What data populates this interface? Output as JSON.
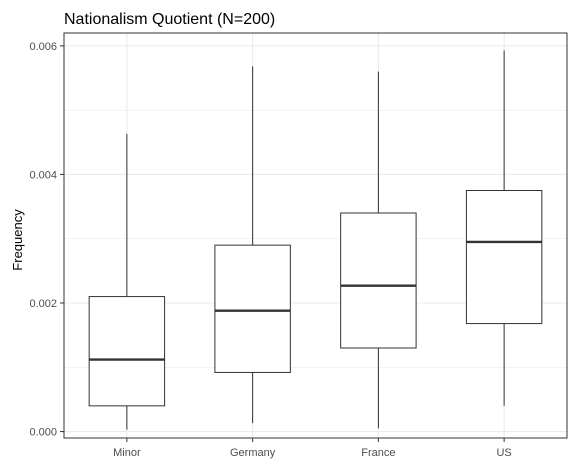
{
  "chart_data": {
    "type": "boxplot",
    "title": "Nationalism Quotient (N=200)",
    "xlabel": "",
    "ylabel": "Frequency",
    "ylim": [
      -0.0001,
      0.0062
    ],
    "yticks": [
      0.0,
      0.002,
      0.004,
      0.006
    ],
    "ytick_labels": [
      "0.000",
      "0.002",
      "0.004",
      "0.006"
    ],
    "grid": true,
    "legend": "none",
    "categories": [
      "Minor",
      "Germany",
      "France",
      "US"
    ],
    "boxes": [
      {
        "category": "Minor",
        "whisker_low": 3e-05,
        "q1": 0.0004,
        "median": 0.00112,
        "q3": 0.0021,
        "whisker_high": 0.00463
      },
      {
        "category": "Germany",
        "whisker_low": 0.00013,
        "q1": 0.00092,
        "median": 0.00188,
        "q3": 0.0029,
        "whisker_high": 0.00568
      },
      {
        "category": "France",
        "whisker_low": 5e-05,
        "q1": 0.0013,
        "median": 0.00227,
        "q3": 0.0034,
        "whisker_high": 0.0056
      },
      {
        "category": "US",
        "whisker_low": 0.0004,
        "q1": 0.00168,
        "median": 0.00295,
        "q3": 0.00375,
        "whisker_high": 0.00593
      }
    ],
    "colors": {
      "panel_border": "#333333",
      "grid": "#ebebeb",
      "box_line": "#333333",
      "box_fill": "#ffffff",
      "tick_text": "#4d4d4d"
    }
  }
}
